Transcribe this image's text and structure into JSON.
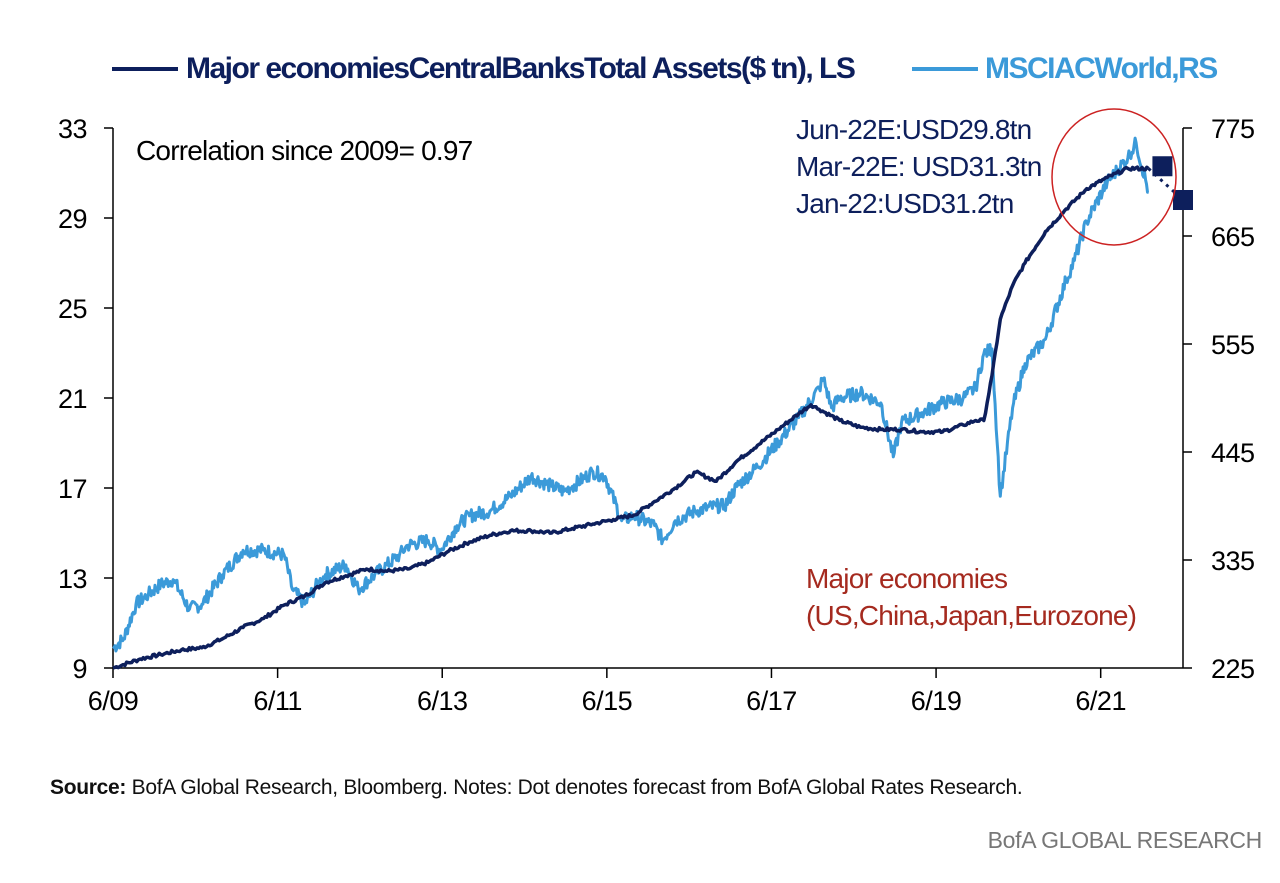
{
  "chart_data": {
    "type": "line",
    "title": "",
    "legend": {
      "placement": "top",
      "entries": [
        {
          "name": "Major economies Central Banks Total Assets ($ tn), LS",
          "label": "Major economiesCentralBanksTotal Assets($ tn), LS",
          "color": "#0d1f5c",
          "axis": "left"
        },
        {
          "name": "MSCI AC World, RS",
          "label": "MSCIACWorld,RS",
          "color": "#3b9ad9",
          "axis": "right"
        }
      ]
    },
    "x_axis": {
      "tick_labels": [
        "6/09",
        "6/11",
        "6/13",
        "6/15",
        "6/17",
        "6/19",
        "6/21"
      ],
      "tick_years": [
        2009.42,
        2011.42,
        2013.42,
        2015.42,
        2017.42,
        2019.42,
        2021.42
      ],
      "range": [
        2009.42,
        2022.42
      ]
    },
    "y_left": {
      "range": [
        9,
        33
      ],
      "ticks": [
        9,
        13,
        17,
        21,
        25,
        29,
        33
      ],
      "label": ""
    },
    "y_right": {
      "range": [
        225,
        775
      ],
      "ticks": [
        225,
        335,
        445,
        555,
        665,
        775
      ],
      "label": ""
    },
    "grid": false,
    "series": [
      {
        "name": "Major economies Central Banks Total Assets ($ tn)",
        "axis": "left",
        "color": "#0d1f5c",
        "points": [
          [
            2009.42,
            9.0
          ],
          [
            2009.75,
            9.4
          ],
          [
            2010.0,
            9.6
          ],
          [
            2010.25,
            9.8
          ],
          [
            2010.5,
            9.9
          ],
          [
            2010.75,
            10.3
          ],
          [
            2011.0,
            10.8
          ],
          [
            2011.25,
            11.2
          ],
          [
            2011.5,
            11.8
          ],
          [
            2011.75,
            12.2
          ],
          [
            2012.0,
            12.8
          ],
          [
            2012.25,
            13.1
          ],
          [
            2012.5,
            13.4
          ],
          [
            2012.75,
            13.3
          ],
          [
            2013.0,
            13.4
          ],
          [
            2013.25,
            13.7
          ],
          [
            2013.5,
            14.2
          ],
          [
            2013.75,
            14.6
          ],
          [
            2014.0,
            14.9
          ],
          [
            2014.25,
            15.1
          ],
          [
            2014.5,
            15.1
          ],
          [
            2014.75,
            15.0
          ],
          [
            2015.0,
            15.2
          ],
          [
            2015.25,
            15.4
          ],
          [
            2015.5,
            15.6
          ],
          [
            2015.75,
            15.8
          ],
          [
            2016.0,
            16.4
          ],
          [
            2016.25,
            17.0
          ],
          [
            2016.5,
            17.7
          ],
          [
            2016.75,
            17.3
          ],
          [
            2017.0,
            18.2
          ],
          [
            2017.25,
            18.9
          ],
          [
            2017.5,
            19.6
          ],
          [
            2017.75,
            20.3
          ],
          [
            2017.9,
            20.7
          ],
          [
            2018.0,
            20.5
          ],
          [
            2018.25,
            20.0
          ],
          [
            2018.5,
            19.7
          ],
          [
            2018.75,
            19.6
          ],
          [
            2019.0,
            19.6
          ],
          [
            2019.25,
            19.5
          ],
          [
            2019.5,
            19.5
          ],
          [
            2019.75,
            19.8
          ],
          [
            2019.9,
            20.0
          ],
          [
            2020.0,
            20.0
          ],
          [
            2020.1,
            22.0
          ],
          [
            2020.2,
            24.5
          ],
          [
            2020.35,
            26.0
          ],
          [
            2020.5,
            27.0
          ],
          [
            2020.75,
            28.4
          ],
          [
            2021.0,
            29.4
          ],
          [
            2021.25,
            30.3
          ],
          [
            2021.5,
            30.8
          ],
          [
            2021.75,
            31.2
          ],
          [
            2022.0,
            31.2
          ]
        ]
      },
      {
        "name": "MSCI AC World",
        "axis": "right",
        "color": "#3b9ad9",
        "points": [
          [
            2009.42,
            245
          ],
          [
            2009.55,
            255
          ],
          [
            2009.7,
            290
          ],
          [
            2009.85,
            300
          ],
          [
            2010.0,
            310
          ],
          [
            2010.15,
            315
          ],
          [
            2010.35,
            285
          ],
          [
            2010.5,
            290
          ],
          [
            2010.75,
            320
          ],
          [
            2011.0,
            345
          ],
          [
            2011.25,
            345
          ],
          [
            2011.5,
            340
          ],
          [
            2011.6,
            305
          ],
          [
            2011.75,
            290
          ],
          [
            2011.9,
            310
          ],
          [
            2012.0,
            320
          ],
          [
            2012.25,
            330
          ],
          [
            2012.4,
            305
          ],
          [
            2012.6,
            320
          ],
          [
            2012.75,
            330
          ],
          [
            2012.9,
            340
          ],
          [
            2013.0,
            350
          ],
          [
            2013.25,
            355
          ],
          [
            2013.4,
            345
          ],
          [
            2013.6,
            370
          ],
          [
            2013.75,
            380
          ],
          [
            2014.0,
            385
          ],
          [
            2014.25,
            400
          ],
          [
            2014.5,
            420
          ],
          [
            2014.75,
            410
          ],
          [
            2014.9,
            405
          ],
          [
            2015.0,
            410
          ],
          [
            2015.25,
            425
          ],
          [
            2015.4,
            420
          ],
          [
            2015.6,
            375
          ],
          [
            2015.75,
            380
          ],
          [
            2016.0,
            370
          ],
          [
            2016.1,
            355
          ],
          [
            2016.25,
            375
          ],
          [
            2016.5,
            385
          ],
          [
            2016.75,
            390
          ],
          [
            2016.85,
            390
          ],
          [
            2017.0,
            410
          ],
          [
            2017.25,
            430
          ],
          [
            2017.5,
            455
          ],
          [
            2017.75,
            480
          ],
          [
            2018.0,
            510
          ],
          [
            2018.05,
            520
          ],
          [
            2018.15,
            490
          ],
          [
            2018.25,
            500
          ],
          [
            2018.5,
            505
          ],
          [
            2018.75,
            495
          ],
          [
            2018.9,
            440
          ],
          [
            2019.0,
            475
          ],
          [
            2019.25,
            485
          ],
          [
            2019.5,
            495
          ],
          [
            2019.75,
            500
          ],
          [
            2019.9,
            510
          ],
          [
            2020.0,
            545
          ],
          [
            2020.1,
            550
          ],
          [
            2020.2,
            400
          ],
          [
            2020.35,
            490
          ],
          [
            2020.5,
            535
          ],
          [
            2020.75,
            560
          ],
          [
            2021.0,
            620
          ],
          [
            2021.1,
            640
          ],
          [
            2021.25,
            680
          ],
          [
            2021.5,
            720
          ],
          [
            2021.75,
            745
          ],
          [
            2021.85,
            760
          ],
          [
            2022.0,
            710
          ]
        ]
      }
    ],
    "forecast_points": [
      {
        "label": "Mar-22E",
        "x": 2022.17,
        "value": 31.3,
        "axis": "left"
      },
      {
        "label": "Jun-22E",
        "x": 2022.42,
        "value": 29.8,
        "axis": "left"
      }
    ],
    "annotations": {
      "correlation": "Correlation since 2009= 0.97",
      "forecast_lines": [
        "Jun-22E:USD29.8tn",
        "Mar-22E: USD31.3tn",
        "Jan-22:USD31.2tn"
      ],
      "economies_line1": "Major economies",
      "economies_line2": "(US,China,Japan,Eurozone)"
    },
    "highlight_circle_color": "#cc2222",
    "annotation_color_red": "#a52a1f"
  },
  "source": {
    "label": "Source:",
    "text": " BofA Global Research, Bloomberg. Notes: Dot denotes forecast from BofA Global Rates Research."
  },
  "footer": "BofA GLOBAL RESEARCH"
}
